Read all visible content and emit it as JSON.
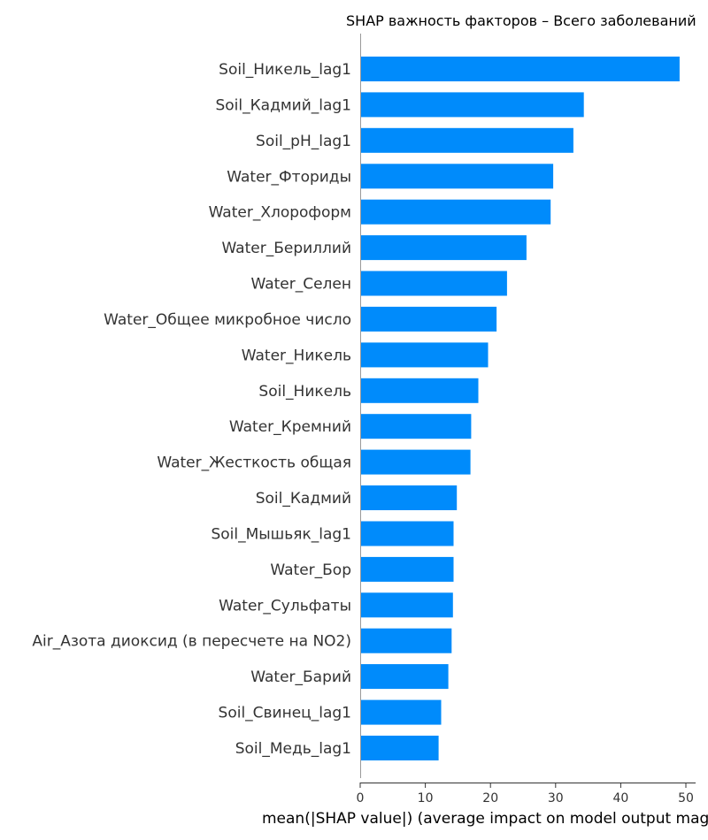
{
  "chart_data": {
    "type": "bar",
    "orientation": "horizontal",
    "title": "SHAP важность факторов – Всего заболеваний",
    "xlabel": "mean(|SHAP value|) (average impact on model output magnitude)",
    "ylabel": "",
    "xlim": [
      0,
      51.5
    ],
    "xticks": [
      0,
      10,
      20,
      30,
      40,
      50
    ],
    "bar_color": "#008bfb",
    "grid": false,
    "categories": [
      "Soil_Никель_lag1",
      "Soil_Кадмий_lag1",
      "Soil_pH_lag1",
      "Water_Фториды",
      "Water_Хлороформ",
      "Water_Бериллий",
      "Water_Селен",
      "Water_Общее микробное число",
      "Water_Никель",
      "Soil_Никель",
      "Water_Кремний",
      "Water_Жесткость общая",
      "Soil_Кадмий",
      "Soil_Мышьяк_lag1",
      "Water_Бор",
      "Water_Сульфаты",
      "Air_Азота диоксид (в пересчете на NO2)",
      "Water_Барий",
      "Soil_Свинец_lag1",
      "Soil_Медь_lag1"
    ],
    "values": [
      48.9,
      34.2,
      32.6,
      29.5,
      29.1,
      25.4,
      22.4,
      20.8,
      19.5,
      18.0,
      16.9,
      16.8,
      14.7,
      14.2,
      14.2,
      14.1,
      13.9,
      13.4,
      12.3,
      11.9
    ]
  }
}
